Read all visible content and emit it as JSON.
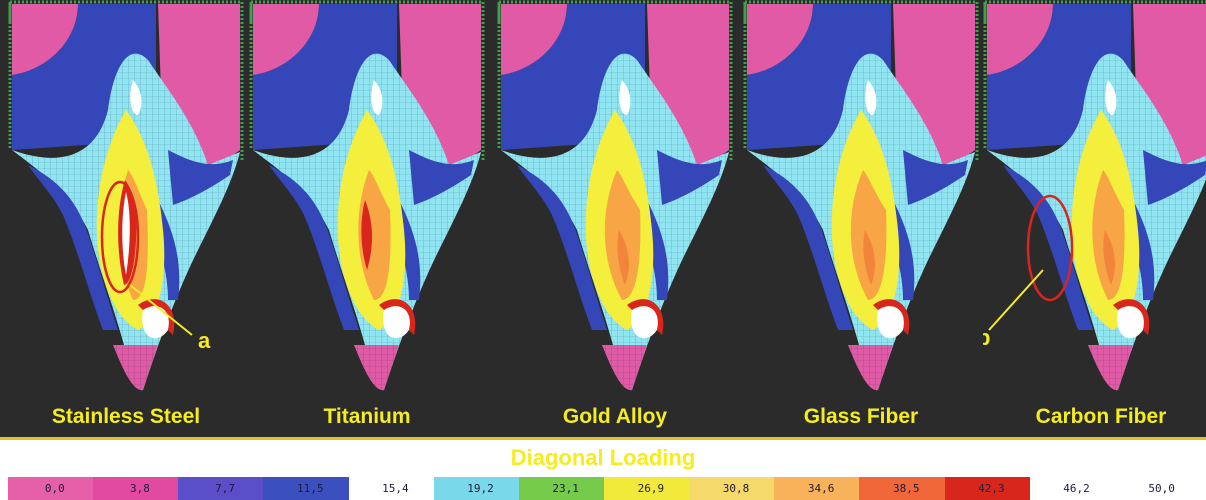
{
  "panels": [
    {
      "material": "Stainless Steel",
      "callout": "a"
    },
    {
      "material": "Titanium",
      "callout": ""
    },
    {
      "material": "Gold Alloy",
      "callout": ""
    },
    {
      "material": "Glass Fiber",
      "callout": ""
    },
    {
      "material": "Carbon Fiber",
      "callout": "b"
    }
  ],
  "loading_title": "Diagonal Loading",
  "scale": {
    "ticks": [
      "0,0",
      "3,8",
      "7,7",
      "11,5",
      "15,4",
      "19,2",
      "23,1",
      "26,9",
      "30,8",
      "34,6",
      "38,5",
      "42,3",
      "46,2",
      "50,0"
    ],
    "colors": [
      "#e560a8",
      "#e14aa0",
      "#5a4fc9",
      "#3b4fbf",
      "#ffffff",
      "#79d8ea",
      "#76cc4a",
      "#f1ea3a",
      "#f5d96b",
      "#f7b25a",
      "#f0683a",
      "#d9261c",
      "#ffffff",
      "#ffffff"
    ]
  },
  "colors": {
    "background": "#2b2b2b",
    "label_yellow": "#f5ec21",
    "pink": "#e05aa6",
    "blue": "#3547b8",
    "cyan": "#8fe6f2",
    "yellow": "#f4ee3c",
    "orange": "#f7a545",
    "red": "#d8261c",
    "frame_green": "#3ea24a"
  }
}
